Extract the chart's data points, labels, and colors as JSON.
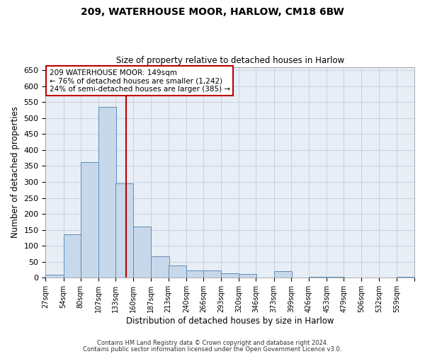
{
  "title1": "209, WATERHOUSE MOOR, HARLOW, CM18 6BW",
  "title2": "Size of property relative to detached houses in Harlow",
  "xlabel": "Distribution of detached houses by size in Harlow",
  "ylabel": "Number of detached properties",
  "bin_labels": [
    "27sqm",
    "54sqm",
    "80sqm",
    "107sqm",
    "133sqm",
    "160sqm",
    "187sqm",
    "213sqm",
    "240sqm",
    "266sqm",
    "293sqm",
    "320sqm",
    "346sqm",
    "373sqm",
    "399sqm",
    "426sqm",
    "453sqm",
    "479sqm",
    "506sqm",
    "532sqm",
    "559sqm"
  ],
  "bin_edges": [
    27,
    54,
    80,
    107,
    133,
    160,
    187,
    213,
    240,
    266,
    293,
    320,
    346,
    373,
    399,
    426,
    453,
    479,
    506,
    532,
    559
  ],
  "bar_heights": [
    10,
    135,
    362,
    535,
    295,
    160,
    67,
    38,
    23,
    23,
    15,
    12,
    0,
    20,
    0,
    2,
    2,
    1,
    0,
    0,
    2
  ],
  "bar_color": "#c8d8eb",
  "bar_edge_color": "#5b8db8",
  "vline_x": 149,
  "vline_color": "#bb0000",
  "annotation_text": "209 WATERHOUSE MOOR: 149sqm\n← 76% of detached houses are smaller (1,242)\n24% of semi-detached houses are larger (385) →",
  "annotation_box_color": "#ffffff",
  "annotation_box_edge": "#bb0000",
  "ylim": [
    0,
    660
  ],
  "yticks": [
    0,
    50,
    100,
    150,
    200,
    250,
    300,
    350,
    400,
    450,
    500,
    550,
    600,
    650
  ],
  "footer1": "Contains HM Land Registry data © Crown copyright and database right 2024.",
  "footer2": "Contains public sector information licensed under the Open Government Licence v3.0.",
  "bg_color": "#ffffff",
  "plot_bg_color": "#e8eef6"
}
